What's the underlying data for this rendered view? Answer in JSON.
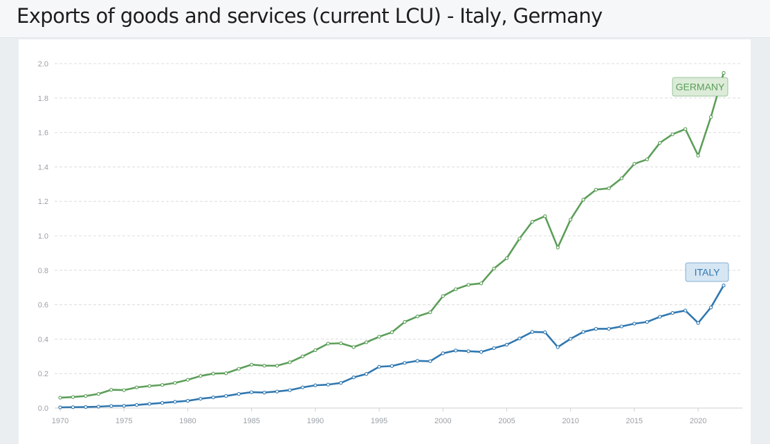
{
  "page": {
    "title": "Exports of goods and services (current LCU) - Italy, Germany"
  },
  "colors": {
    "germany": "#5b9e58",
    "germany_tag_fill": "#dcecd9",
    "italy": "#2f77b0",
    "italy_tag_fill": "#d6e6f3",
    "grid": "#dcdcdc",
    "axis": "#cfcfcf"
  },
  "chart_data": {
    "type": "line",
    "title": "Exports of goods and services (current LCU) - Italy, Germany",
    "xlabel": "",
    "ylabel": "",
    "xlim": [
      1970,
      2022
    ],
    "ylim": [
      0,
      2.0
    ],
    "grid": true,
    "y_ticks": [
      "0.0",
      "0.2",
      "0.4",
      "0.6",
      "0.8",
      "1.0",
      "1.2",
      "1.4",
      "1.6",
      "1.8",
      "2.0"
    ],
    "y_tick_values": [
      0,
      0.2,
      0.4,
      0.6,
      0.8,
      1.0,
      1.2,
      1.4,
      1.6,
      1.8,
      2.0
    ],
    "x_ticks": [
      "1970",
      "1975",
      "1980",
      "1985",
      "1990",
      "1995",
      "2000",
      "2005",
      "2010",
      "2015",
      "2020"
    ],
    "x_tick_values": [
      1970,
      1975,
      1980,
      1985,
      1990,
      1995,
      2000,
      2005,
      2010,
      2015,
      2020
    ],
    "x": [
      1970,
      1971,
      1972,
      1973,
      1974,
      1975,
      1976,
      1977,
      1978,
      1979,
      1980,
      1981,
      1982,
      1983,
      1984,
      1985,
      1986,
      1987,
      1988,
      1989,
      1990,
      1991,
      1992,
      1993,
      1994,
      1995,
      1996,
      1997,
      1998,
      1999,
      2000,
      2001,
      2002,
      2003,
      2004,
      2005,
      2006,
      2007,
      2008,
      2009,
      2010,
      2011,
      2012,
      2013,
      2014,
      2015,
      2016,
      2017,
      2018,
      2019,
      2020,
      2021,
      2022
    ],
    "series": [
      {
        "name": "Germany",
        "label": "GERMANY",
        "values": [
          0.06,
          0.064,
          0.07,
          0.082,
          0.106,
          0.104,
          0.12,
          0.128,
          0.134,
          0.146,
          0.164,
          0.186,
          0.2,
          0.202,
          0.228,
          0.252,
          0.246,
          0.246,
          0.266,
          0.3,
          0.336,
          0.374,
          0.376,
          0.354,
          0.382,
          0.414,
          0.44,
          0.5,
          0.532,
          0.556,
          0.65,
          0.69,
          0.716,
          0.724,
          0.81,
          0.87,
          0.984,
          1.082,
          1.114,
          0.932,
          1.094,
          1.21,
          1.268,
          1.276,
          1.334,
          1.418,
          1.444,
          1.54,
          1.59,
          1.62,
          1.466,
          1.69,
          1.946
        ]
      },
      {
        "name": "Italy",
        "label": "ITALY",
        "values": [
          0.004,
          0.005,
          0.006,
          0.008,
          0.012,
          0.013,
          0.018,
          0.024,
          0.03,
          0.036,
          0.042,
          0.054,
          0.062,
          0.07,
          0.082,
          0.092,
          0.09,
          0.096,
          0.104,
          0.12,
          0.132,
          0.136,
          0.146,
          0.178,
          0.198,
          0.24,
          0.244,
          0.262,
          0.274,
          0.272,
          0.318,
          0.334,
          0.33,
          0.326,
          0.348,
          0.368,
          0.404,
          0.442,
          0.44,
          0.354,
          0.402,
          0.442,
          0.46,
          0.46,
          0.474,
          0.49,
          0.5,
          0.53,
          0.552,
          0.566,
          0.494,
          0.584,
          0.712
        ]
      }
    ],
    "annotations": [
      "GERMANY",
      "ITALY"
    ]
  }
}
